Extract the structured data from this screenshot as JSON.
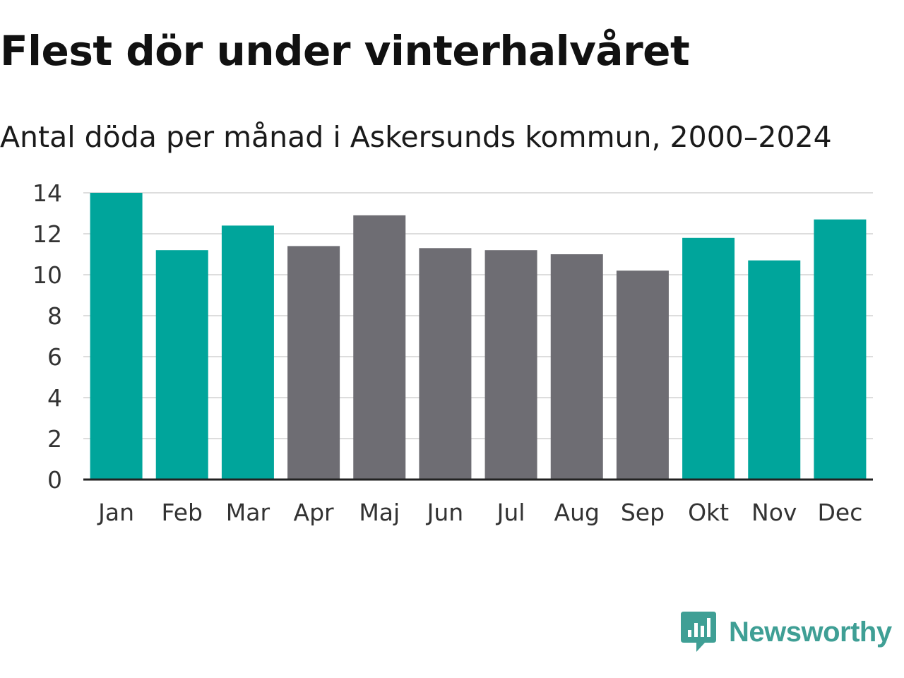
{
  "header": {
    "title": "Flest dör under vinterhalvåret",
    "subtitle": "Antal döda per månad i Askersunds kommun, 2000–2024"
  },
  "brand": {
    "name": "Newsworthy",
    "color": "#3f9f95",
    "icon": "newsworthy-chart-bubble-icon"
  },
  "colors": {
    "winter": "#00a59b",
    "summer": "#6e6d73",
    "grid": "#dddddd",
    "axis": "#222222"
  },
  "chart_data": {
    "type": "bar",
    "title": "Flest dör under vinterhalvåret",
    "subtitle": "Antal döda per månad i Askersunds kommun, 2000–2024",
    "xlabel": "",
    "ylabel": "",
    "ylim": [
      0,
      14
    ],
    "yticks": [
      0,
      2,
      4,
      6,
      8,
      10,
      12,
      14
    ],
    "grid": true,
    "categories": [
      "Jan",
      "Feb",
      "Mar",
      "Apr",
      "Maj",
      "Jun",
      "Jul",
      "Aug",
      "Sep",
      "Okt",
      "Nov",
      "Dec"
    ],
    "values": [
      14.0,
      11.2,
      12.4,
      11.4,
      12.9,
      11.3,
      11.2,
      11.0,
      10.2,
      11.8,
      10.7,
      12.7
    ],
    "bar_groups": [
      "winter",
      "winter",
      "winter",
      "summer",
      "summer",
      "summer",
      "summer",
      "summer",
      "summer",
      "winter",
      "winter",
      "winter"
    ]
  }
}
